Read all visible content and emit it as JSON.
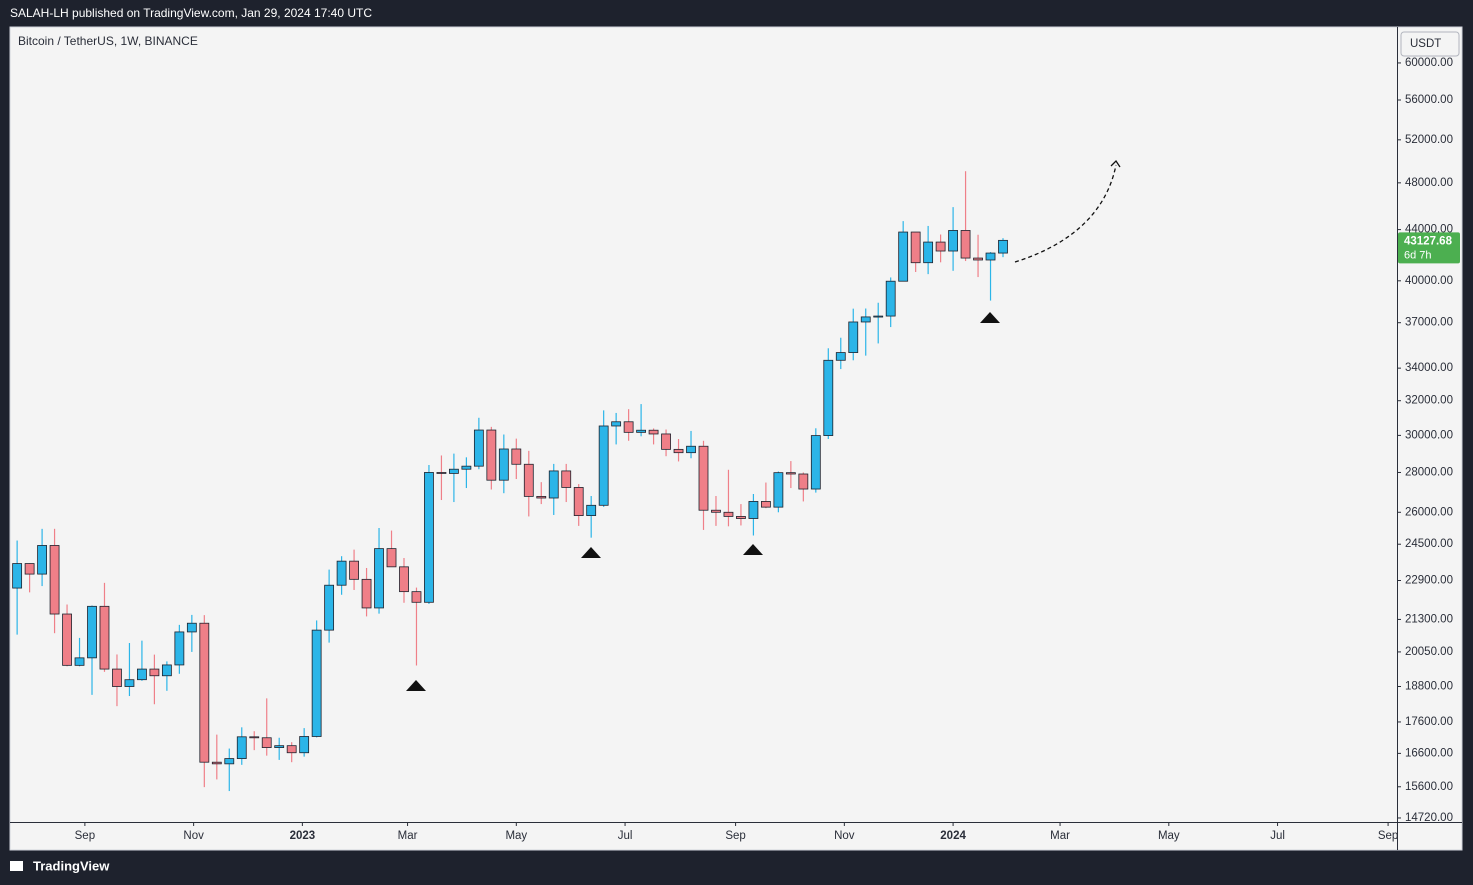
{
  "header": {
    "publisher": "SALAH-LH published on TradingView.com, Jan 29, 2024 17:40 UTC",
    "brand": "TradingView"
  },
  "chart_data": {
    "type": "candlestick",
    "title": "Bitcoin / TetherUS, 1W, BINANCE",
    "currency": "USDT",
    "countdown": "6d 7h",
    "log_scale": true,
    "grid": false,
    "up_color": "#2bb5e8",
    "down_color": "#ef7f88",
    "x": [
      "2022-07-25",
      "2022-08-01",
      "2022-08-08",
      "2022-08-15",
      "2022-08-22",
      "2022-08-29",
      "2022-09-05",
      "2022-09-12",
      "2022-09-19",
      "2022-09-26",
      "2022-10-03",
      "2022-10-10",
      "2022-10-17",
      "2022-10-24",
      "2022-10-31",
      "2022-11-07",
      "2022-11-14",
      "2022-11-21",
      "2022-11-28",
      "2022-12-05",
      "2022-12-12",
      "2022-12-19",
      "2022-12-26",
      "2023-01-02",
      "2023-01-09",
      "2023-01-16",
      "2023-01-23",
      "2023-01-30",
      "2023-02-06",
      "2023-02-13",
      "2023-02-20",
      "2023-02-27",
      "2023-03-06",
      "2023-03-13",
      "2023-03-20",
      "2023-03-27",
      "2023-04-03",
      "2023-04-10",
      "2023-04-17",
      "2023-04-24",
      "2023-05-01",
      "2023-05-08",
      "2023-05-15",
      "2023-05-22",
      "2023-05-29",
      "2023-06-05",
      "2023-06-12",
      "2023-06-19",
      "2023-06-26",
      "2023-07-03",
      "2023-07-10",
      "2023-07-17",
      "2023-07-24",
      "2023-07-31",
      "2023-08-07",
      "2023-08-14",
      "2023-08-21",
      "2023-08-28",
      "2023-09-04",
      "2023-09-11",
      "2023-09-18",
      "2023-09-25",
      "2023-10-02",
      "2023-10-09",
      "2023-10-16",
      "2023-10-23",
      "2023-10-30",
      "2023-11-06",
      "2023-11-13",
      "2023-11-20",
      "2023-11-27",
      "2023-12-04",
      "2023-12-11",
      "2023-12-18",
      "2023-12-25",
      "2024-01-01",
      "2024-01-08",
      "2024-01-15",
      "2024-01-22",
      "2024-01-29"
    ],
    "open": [
      22580,
      23634,
      23175,
      24443,
      21515,
      19555,
      19830,
      21826,
      19420,
      18800,
      19040,
      19420,
      19180,
      19570,
      20810,
      21150,
      16330,
      16280,
      16440,
      17120,
      17090,
      16780,
      16840,
      16620,
      17130,
      20880,
      22700,
      23740,
      22950,
      21760,
      24300,
      23490,
      22430,
      21990,
      28000,
      27950,
      28170,
      28330,
      30300,
      27600,
      29250,
      28430,
      26780,
      26700,
      28080,
      27230,
      25840,
      26340,
      30530,
      30770,
      30170,
      30290,
      30080,
      29230,
      29050,
      29400,
      26100,
      26000,
      25800,
      25700,
      26530,
      26250,
      27990,
      27920,
      27150,
      29990,
      34500,
      35000,
      37050,
      37400,
      37460,
      39970,
      43800,
      41370,
      42990,
      42280,
      43930,
      41730,
      41580,
      42120
    ],
    "high": [
      24668,
      23647,
      25211,
      25212,
      21900,
      20580,
      21860,
      22800,
      19956,
      20385,
      20475,
      19950,
      19700,
      21085,
      21480,
      21470,
      17190,
      16750,
      17425,
      17300,
      18390,
      17090,
      16950,
      17400,
      21260,
      23370,
      23960,
      24255,
      23440,
      25250,
      25130,
      23880,
      22600,
      28390,
      28900,
      29000,
      28800,
      31000,
      30480,
      30050,
      29820,
      29150,
      27500,
      28450,
      28450,
      27400,
      26800,
      31430,
      31280,
      31500,
      31800,
      30390,
      30330,
      29800,
      30250,
      29700,
      26800,
      28140,
      26400,
      26900,
      27480,
      28050,
      28600,
      28000,
      30400,
      35280,
      35980,
      37980,
      37990,
      38400,
      40250,
      44700,
      43800,
      44300,
      43600,
      45880,
      49050,
      43580,
      42200,
      43300
    ],
    "low": [
      20706,
      22400,
      22664,
      20761,
      19520,
      19520,
      18510,
      19320,
      18125,
      18470,
      19000,
      18190,
      18650,
      19250,
      20050,
      15588,
      15815,
      15476,
      16250,
      16700,
      16530,
      16400,
      16330,
      16500,
      17100,
      20400,
      22300,
      22500,
      21420,
      21530,
      23600,
      21970,
      19550,
      21920,
      26600,
      26500,
      27200,
      28170,
      27125,
      26940,
      27660,
      25800,
      26400,
      25870,
      26500,
      25350,
      24800,
      26260,
      29500,
      29700,
      29950,
      29500,
      28860,
      28580,
      28750,
      25160,
      25350,
      25330,
      25370,
      24900,
      26200,
      26000,
      27200,
      26530,
      26970,
      29800,
      33940,
      34500,
      34800,
      35600,
      36700,
      39970,
      40660,
      40500,
      41400,
      40750,
      41500,
      40280,
      38555,
      41800
    ],
    "close": [
      23634,
      23175,
      24443,
      21515,
      19555,
      19830,
      21826,
      19420,
      18800,
      19040,
      19420,
      19180,
      19570,
      20810,
      21150,
      16330,
      16280,
      16440,
      17120,
      17090,
      16780,
      16840,
      16620,
      17130,
      20880,
      22700,
      23740,
      22950,
      21760,
      24300,
      23490,
      22430,
      21990,
      28000,
      27950,
      28170,
      28330,
      30300,
      27600,
      29250,
      28430,
      26780,
      26700,
      28080,
      27230,
      25840,
      26340,
      30530,
      30770,
      30170,
      30290,
      30080,
      29230,
      29050,
      29400,
      26100,
      26000,
      25800,
      25700,
      26530,
      26250,
      27990,
      27920,
      27150,
      29990,
      34500,
      35000,
      37050,
      37400,
      37460,
      39970,
      43800,
      41370,
      42990,
      42280,
      43930,
      41730,
      41580,
      42120,
      43127.68
    ],
    "xlim": [
      "2022-07-21",
      "2024-09-06"
    ],
    "xticks": [
      {
        "value": "2022-09-01",
        "label": "Sep"
      },
      {
        "value": "2022-11-01",
        "label": "Nov"
      },
      {
        "value": "2023-01-01",
        "label": "2023"
      },
      {
        "value": "2023-03-01",
        "label": "Mar"
      },
      {
        "value": "2023-05-01",
        "label": "May"
      },
      {
        "value": "2023-07-01",
        "label": "Jul"
      },
      {
        "value": "2023-09-01",
        "label": "Sep"
      },
      {
        "value": "2023-11-01",
        "label": "Nov"
      },
      {
        "value": "2024-01-01",
        "label": "2024"
      },
      {
        "value": "2024-03-01",
        "label": "Mar"
      },
      {
        "value": "2024-05-01",
        "label": "May"
      },
      {
        "value": "2024-07-01",
        "label": "Jul"
      },
      {
        "value": "2024-09-01",
        "label": "Sep"
      }
    ],
    "ylim": [
      14610,
      64150
    ],
    "yticks": [
      {
        "value": 60000,
        "label": "60000.00"
      },
      {
        "value": 56000,
        "label": "56000.00"
      },
      {
        "value": 52000,
        "label": "52000.00"
      },
      {
        "value": 48000,
        "label": "48000.00"
      },
      {
        "value": 44000,
        "label": "44000.00"
      },
      {
        "value": 40000,
        "label": "40000.00"
      },
      {
        "value": 37000,
        "label": "37000.00"
      },
      {
        "value": 34000,
        "label": "34000.00"
      },
      {
        "value": 32000,
        "label": "32000.00"
      },
      {
        "value": 30000,
        "label": "30000.00"
      },
      {
        "value": 28000,
        "label": "28000.00"
      },
      {
        "value": 26000,
        "label": "26000.00"
      },
      {
        "value": 24500,
        "label": "24500.00"
      },
      {
        "value": 22900,
        "label": "22900.00"
      },
      {
        "value": 21300,
        "label": "21300.00"
      },
      {
        "value": 20050,
        "label": "20050.00"
      },
      {
        "value": 18800,
        "label": "18800.00"
      },
      {
        "value": 17600,
        "label": "17600.00"
      },
      {
        "value": 16600,
        "label": "16600.00"
      },
      {
        "value": 15600,
        "label": "15600.00"
      },
      {
        "value": 14720,
        "label": "14720.00"
      }
    ]
  }
}
